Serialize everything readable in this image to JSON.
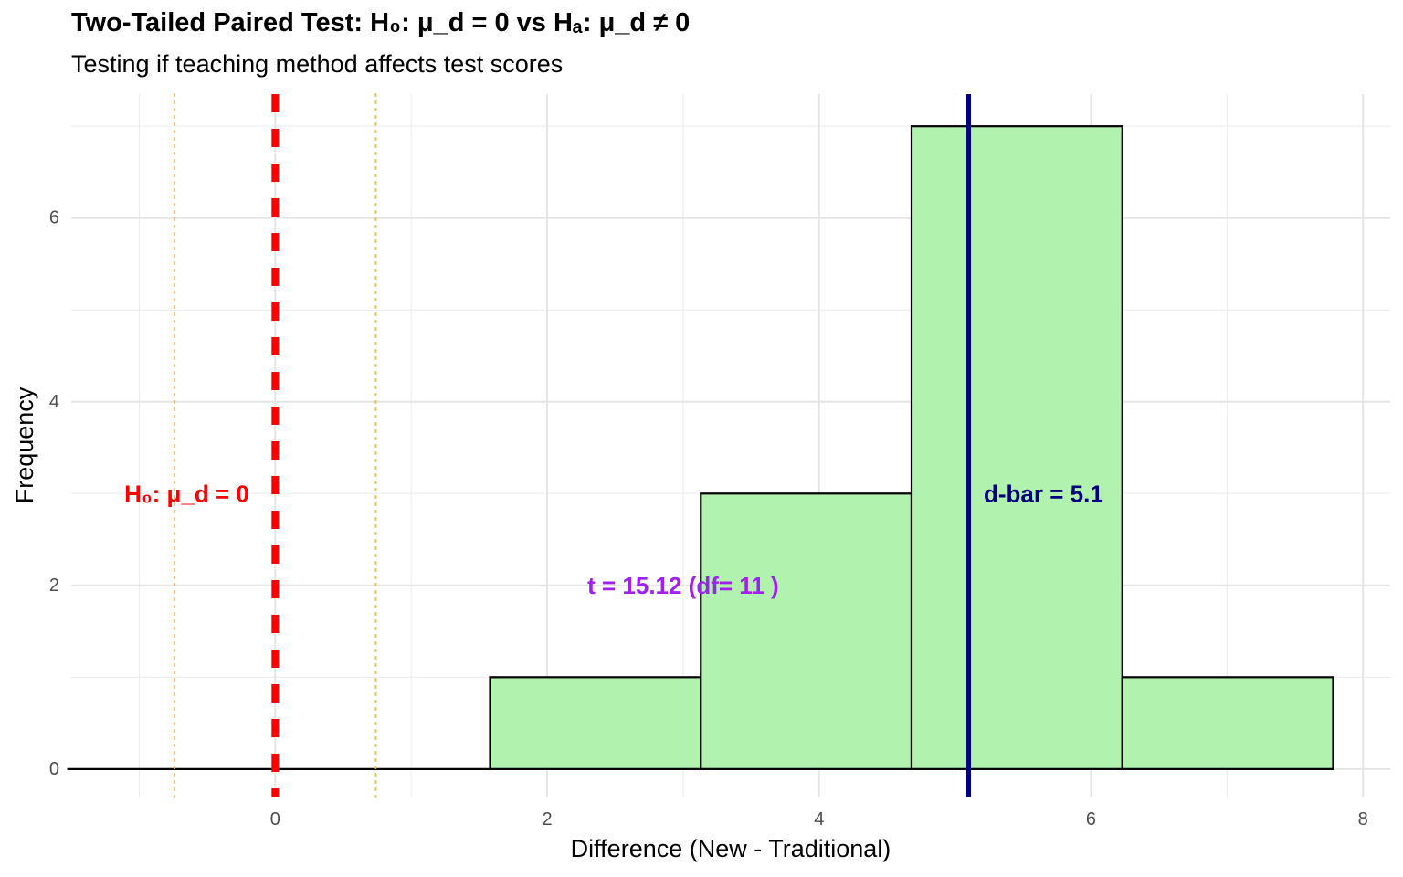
{
  "chart_data": {
    "type": "bar",
    "title": "Two-Tailed Paired Test: H₀: μ_d = 0 vs Hₐ: μ_d ≠ 0",
    "subtitle": "Testing if teaching method affects test scores",
    "xlabel": "Difference (New - Traditional)",
    "ylabel": "Frequency",
    "xlim": [
      -1.5,
      8.2
    ],
    "ylim": [
      -0.3,
      7.35
    ],
    "x_ticks": [
      0,
      2,
      4,
      6,
      8
    ],
    "y_ticks": [
      0,
      2,
      4,
      6
    ],
    "grid": true,
    "bins": [
      {
        "x0": -1.53,
        "x1": 0.02,
        "count": 0
      },
      {
        "x0": 0.02,
        "x1": 1.58,
        "count": 0
      },
      {
        "x0": 1.58,
        "x1": 3.13,
        "count": 1
      },
      {
        "x0": 3.13,
        "x1": 4.68,
        "count": 3
      },
      {
        "x0": 4.68,
        "x1": 6.23,
        "count": 7
      },
      {
        "x0": 6.23,
        "x1": 7.78,
        "count": 1
      }
    ],
    "bar_fill": "#b0f2ae",
    "bar_outline": "#000000",
    "null_line": {
      "x": 0,
      "color": "#ff0000",
      "label": "H₀: μ_d = 0",
      "label_x": -0.65,
      "label_y": 3
    },
    "critical_lines": {
      "x": [
        -0.74,
        0.74
      ],
      "color": "#ffb84d"
    },
    "mean_line": {
      "x": 5.1,
      "color": "#00007f",
      "label": "d-bar = 5.1",
      "label_x": 5.65,
      "label_y": 3
    },
    "t_annotation": {
      "text": "t = 15.12 (df= 11 )",
      "x": 3,
      "y": 2,
      "color": "#a020f0"
    }
  }
}
